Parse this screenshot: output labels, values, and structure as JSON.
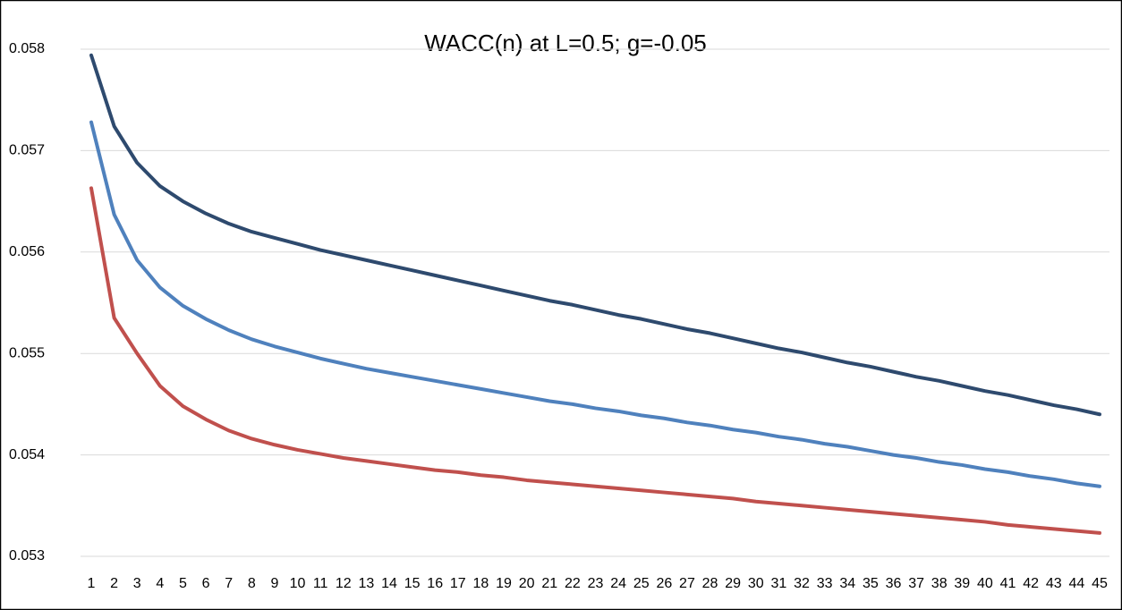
{
  "chart_data": {
    "type": "line",
    "title": "WACC(n) at L=0.5; g=-0.05",
    "categories": [
      "1",
      "2",
      "3",
      "4",
      "5",
      "6",
      "7",
      "8",
      "9",
      "10",
      "11",
      "12",
      "13",
      "14",
      "15",
      "16",
      "17",
      "18",
      "19",
      "20",
      "21",
      "22",
      "23",
      "24",
      "25",
      "26",
      "27",
      "28",
      "29",
      "30",
      "31",
      "32",
      "33",
      "34",
      "35",
      "36",
      "37",
      "38",
      "39",
      "40",
      "41",
      "42",
      "43",
      "44",
      "45"
    ],
    "series": [
      {
        "color": "#2e4a6e",
        "values": [
          0.05794,
          0.05724,
          0.05688,
          0.05665,
          0.0565,
          0.05638,
          0.05628,
          0.0562,
          0.05614,
          0.05608,
          0.05602,
          0.05597,
          0.05592,
          0.05587,
          0.05582,
          0.05577,
          0.05572,
          0.05567,
          0.05562,
          0.05557,
          0.05552,
          0.05548,
          0.05543,
          0.05538,
          0.05534,
          0.05529,
          0.05524,
          0.0552,
          0.05515,
          0.0551,
          0.05505,
          0.05501,
          0.05496,
          0.05491,
          0.05487,
          0.05482,
          0.05477,
          0.05473,
          0.05468,
          0.05463,
          0.05459,
          0.05454,
          0.05449,
          0.05445,
          0.0544
        ]
      },
      {
        "color": "#4f81bd",
        "values": [
          0.05728,
          0.05637,
          0.05592,
          0.05565,
          0.05547,
          0.05534,
          0.05523,
          0.05514,
          0.05507,
          0.05501,
          0.05495,
          0.0549,
          0.05485,
          0.05481,
          0.05477,
          0.05473,
          0.05469,
          0.05465,
          0.05461,
          0.05457,
          0.05453,
          0.0545,
          0.05446,
          0.05443,
          0.05439,
          0.05436,
          0.05432,
          0.05429,
          0.05425,
          0.05422,
          0.05418,
          0.05415,
          0.05411,
          0.05408,
          0.05404,
          0.054,
          0.05397,
          0.05393,
          0.0539,
          0.05386,
          0.05383,
          0.05379,
          0.05376,
          0.05372,
          0.05369
        ]
      },
      {
        "color": "#c0504d",
        "values": [
          0.05663,
          0.05535,
          0.055,
          0.05468,
          0.05448,
          0.05435,
          0.05424,
          0.05416,
          0.0541,
          0.05405,
          0.05401,
          0.05397,
          0.05394,
          0.05391,
          0.05388,
          0.05385,
          0.05383,
          0.0538,
          0.05378,
          0.05375,
          0.05373,
          0.05371,
          0.05369,
          0.05367,
          0.05365,
          0.05363,
          0.05361,
          0.05359,
          0.05357,
          0.05354,
          0.05352,
          0.0535,
          0.05348,
          0.05346,
          0.05344,
          0.05342,
          0.0534,
          0.05338,
          0.05336,
          0.05334,
          0.05331,
          0.05329,
          0.05327,
          0.05325,
          0.05323
        ]
      }
    ],
    "ylim": [
      0.053,
      0.058
    ],
    "yticks": [
      0.053,
      0.054,
      0.055,
      0.056,
      0.057,
      0.058
    ],
    "grid": true
  }
}
